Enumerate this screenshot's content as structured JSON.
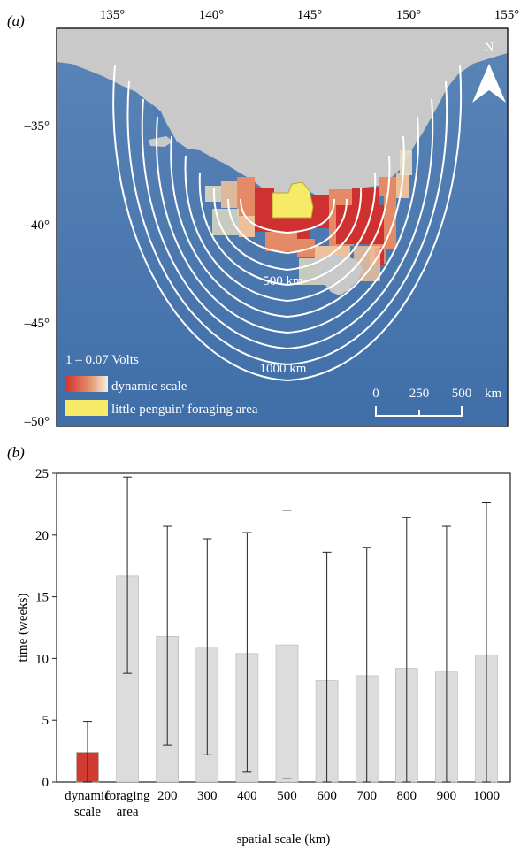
{
  "panel_a": {
    "label": "(a)",
    "lon_ticks": [
      "135°",
      "140°",
      "145°",
      "150°",
      "155°"
    ],
    "lat_ticks": [
      "–35°",
      "–40°",
      "–45°",
      "–50°"
    ],
    "north_label": "N",
    "legend": {
      "title": "1 – 0.07 Volts",
      "dynamic_label": "dynamic scale",
      "foraging_label": "little penguin' foraging area"
    },
    "ring_labels": [
      "500 km",
      "1000 km"
    ],
    "scalebar": {
      "ticks": [
        "0",
        "250",
        "500"
      ],
      "unit": "km"
    },
    "colors": {
      "ocean": "#4a77ad",
      "land": "#c9c9c9",
      "ring": "#ffffff",
      "hot": "#cf3030",
      "warm": "#e58a66",
      "mild": "#ecc09a",
      "cool": "#e6dec2",
      "foraging": "#f6ea66"
    }
  },
  "chart_data": {
    "panel_label": "(b)",
    "type": "bar",
    "categories": [
      "dynamic scale",
      "foraging area",
      "200",
      "300",
      "400",
      "500",
      "600",
      "700",
      "800",
      "900",
      "1000"
    ],
    "category_lines": [
      [
        "dynamic",
        "scale"
      ],
      [
        "foraging",
        "area"
      ],
      [
        "200"
      ],
      [
        "300"
      ],
      [
        "400"
      ],
      [
        "500"
      ],
      [
        "600"
      ],
      [
        "700"
      ],
      [
        "800"
      ],
      [
        "900"
      ],
      [
        "1000"
      ]
    ],
    "values": [
      2.4,
      16.7,
      11.8,
      10.9,
      10.4,
      11.1,
      8.2,
      8.6,
      9.2,
      8.9,
      10.3
    ],
    "error_low": [
      0.0,
      8.8,
      3.0,
      2.2,
      0.8,
      0.3,
      0.0,
      0.0,
      0.0,
      0.0,
      0.0
    ],
    "error_high": [
      4.9,
      24.7,
      20.7,
      19.7,
      20.2,
      22.0,
      18.6,
      19.0,
      21.4,
      20.7,
      22.6
    ],
    "bar_colors": [
      "#cf3b30",
      "#dcdcdc",
      "#dcdcdc",
      "#dcdcdc",
      "#dcdcdc",
      "#dcdcdc",
      "#dcdcdc",
      "#dcdcdc",
      "#dcdcdc",
      "#dcdcdc",
      "#dcdcdc"
    ],
    "xlabel": "spatial scale (km)",
    "ylabel": "time (weeks)",
    "ylim": [
      0,
      25
    ],
    "yticks": [
      0,
      5,
      10,
      15,
      20,
      25
    ],
    "grid": false
  }
}
